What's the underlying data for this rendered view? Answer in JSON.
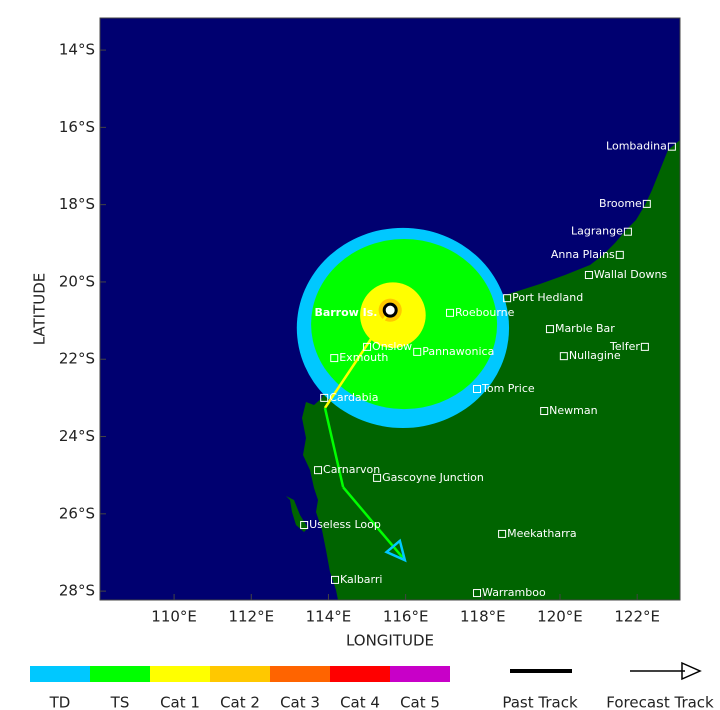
{
  "map": {
    "xlabel": "LONGITUDE",
    "ylabel": "LATITUDE",
    "xlim": [
      108.08,
      123.11
    ],
    "ylim": [
      -28.23,
      -13.17
    ],
    "xticks": [
      {
        "value": 110,
        "label": "110°E"
      },
      {
        "value": 112,
        "label": "112°E"
      },
      {
        "value": 114,
        "label": "114°E"
      },
      {
        "value": 116,
        "label": "116°E"
      },
      {
        "value": 118,
        "label": "118°E"
      },
      {
        "value": 120,
        "label": "120°E"
      },
      {
        "value": 122,
        "label": "122°E"
      }
    ],
    "yticks": [
      {
        "value": -14,
        "label": "14°S"
      },
      {
        "value": -16,
        "label": "16°S"
      },
      {
        "value": -18,
        "label": "18°S"
      },
      {
        "value": -20,
        "label": "20°S"
      },
      {
        "value": -22,
        "label": "22°S"
      },
      {
        "value": -24,
        "label": "24°S"
      },
      {
        "value": -26,
        "label": "26°S"
      },
      {
        "value": -28,
        "label": "28°S"
      }
    ],
    "wind_radii": [
      {
        "color": "#00c8ff",
        "lon": 115.93,
        "lat": -21.19,
        "rx": 2.75,
        "ry": 2.59
      },
      {
        "color": "#00ff00",
        "lon": 115.96,
        "lat": -21.09,
        "rx": 2.41,
        "ry": 2.2
      },
      {
        "color": "#ffff00",
        "lon": 115.67,
        "lat": -20.86,
        "rx": 0.85,
        "ry": 0.85
      },
      {
        "color": "#ffc800",
        "lon": 115.6,
        "lat": -20.73,
        "rx": 0.3,
        "ry": 0.3
      }
    ],
    "track": [
      {
        "lon": 115.6,
        "lat": -20.73,
        "color": "#ffff00"
      },
      {
        "lon": 113.91,
        "lat": -23.26,
        "color": "#00ff00"
      },
      {
        "lon": 114.38,
        "lat": -25.31,
        "color": "#00ff00"
      },
      {
        "lon": 115.98,
        "lat": -27.2,
        "color": "#00c8ff"
      }
    ],
    "places": [
      {
        "name": "Barrow Is.",
        "lon": 115.4,
        "lat": -20.8,
        "label_side": "left",
        "bold": true
      },
      {
        "name": "Lombadina",
        "lon": 122.9,
        "lat": -16.5,
        "label_side": "left"
      },
      {
        "name": "Broome",
        "lon": 122.25,
        "lat": -17.98,
        "label_side": "left"
      },
      {
        "name": "Lagrange",
        "lon": 121.76,
        "lat": -18.7,
        "label_side": "left"
      },
      {
        "name": "Anna Plains",
        "lon": 121.55,
        "lat": -19.3,
        "label_side": "left"
      },
      {
        "name": "Wallal Downs",
        "lon": 120.75,
        "lat": -19.82,
        "label_side": "right"
      },
      {
        "name": "Port Hedland",
        "lon": 118.63,
        "lat": -20.42,
        "label_side": "right"
      },
      {
        "name": "Roebourne",
        "lon": 117.15,
        "lat": -20.8,
        "label_side": "right"
      },
      {
        "name": "Marble Bar",
        "lon": 119.74,
        "lat": -21.22,
        "label_side": "right"
      },
      {
        "name": "Telfer",
        "lon": 122.2,
        "lat": -21.68,
        "label_side": "left"
      },
      {
        "name": "Nullagine",
        "lon": 120.1,
        "lat": -21.92,
        "label_side": "right"
      },
      {
        "name": "Onslow",
        "lon": 115.0,
        "lat": -21.68,
        "label_side": "right"
      },
      {
        "name": "Pannawonica",
        "lon": 116.3,
        "lat": -21.81,
        "label_side": "right"
      },
      {
        "name": "Exmouth",
        "lon": 114.15,
        "lat": -21.97,
        "label_side": "right"
      },
      {
        "name": "Tom Price",
        "lon": 117.85,
        "lat": -22.77,
        "label_side": "right"
      },
      {
        "name": "Cardabia",
        "lon": 113.89,
        "lat": -23.0,
        "label_side": "right"
      },
      {
        "name": "Newman",
        "lon": 119.59,
        "lat": -23.34,
        "label_side": "right"
      },
      {
        "name": "Carnarvon",
        "lon": 113.73,
        "lat": -24.87,
        "label_side": "right"
      },
      {
        "name": "Gascoyne Junction",
        "lon": 115.26,
        "lat": -25.07,
        "label_side": "right"
      },
      {
        "name": "Useless Loop",
        "lon": 113.37,
        "lat": -26.29,
        "label_side": "right"
      },
      {
        "name": "Meekatharra",
        "lon": 118.5,
        "lat": -26.52,
        "label_side": "right"
      },
      {
        "name": "Kalbarri",
        "lon": 114.17,
        "lat": -27.71,
        "label_side": "right"
      },
      {
        "name": "Warramboo",
        "lon": 117.85,
        "lat": -28.05,
        "label_side": "right"
      }
    ]
  },
  "legend": {
    "categories": [
      {
        "name": "TD",
        "color": "#00c8ff"
      },
      {
        "name": "TS",
        "color": "#00ff00"
      },
      {
        "name": "Cat 1",
        "color": "#ffff00"
      },
      {
        "name": "Cat 2",
        "color": "#ffc800"
      },
      {
        "name": "Cat 3",
        "color": "#ff6400"
      },
      {
        "name": "Cat 4",
        "color": "#ff0000"
      },
      {
        "name": "Cat 5",
        "color": "#c800c8"
      }
    ],
    "past_track": "Past Track",
    "forecast_track": "Forecast Track"
  }
}
